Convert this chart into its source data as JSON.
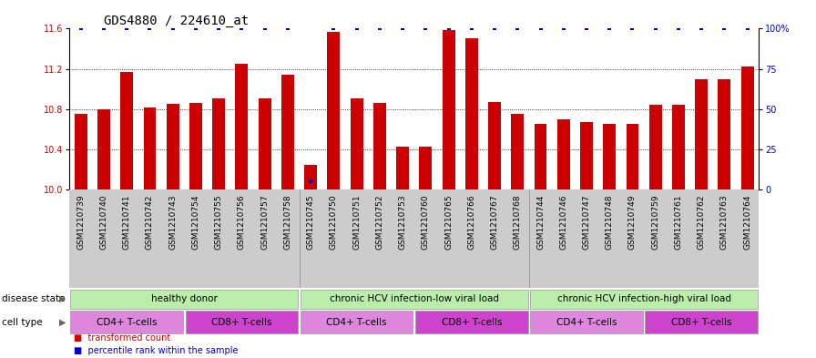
{
  "title": "GDS4880 / 224610_at",
  "samples": [
    "GSM1210739",
    "GSM1210740",
    "GSM1210741",
    "GSM1210742",
    "GSM1210743",
    "GSM1210754",
    "GSM1210755",
    "GSM1210756",
    "GSM1210757",
    "GSM1210758",
    "GSM1210745",
    "GSM1210750",
    "GSM1210751",
    "GSM1210752",
    "GSM1210753",
    "GSM1210760",
    "GSM1210765",
    "GSM1210766",
    "GSM1210767",
    "GSM1210768",
    "GSM1210744",
    "GSM1210746",
    "GSM1210747",
    "GSM1210748",
    "GSM1210749",
    "GSM1210759",
    "GSM1210761",
    "GSM1210762",
    "GSM1210763",
    "GSM1210764"
  ],
  "values": [
    10.75,
    10.8,
    11.17,
    10.82,
    10.85,
    10.86,
    10.91,
    11.25,
    10.91,
    11.14,
    10.25,
    11.57,
    10.91,
    10.86,
    10.43,
    10.43,
    11.59,
    11.5,
    10.87,
    10.75,
    10.65,
    10.7,
    10.67,
    10.65,
    10.65,
    10.84,
    10.84,
    11.1,
    11.1,
    11.22
  ],
  "percentile_ranks": [
    100,
    100,
    100,
    100,
    100,
    100,
    100,
    100,
    100,
    100,
    5,
    100,
    100,
    100,
    100,
    100,
    100,
    100,
    100,
    100,
    100,
    100,
    100,
    100,
    100,
    100,
    100,
    100,
    100,
    100
  ],
  "ylim_left": [
    10.0,
    11.6
  ],
  "ylim_right": [
    0,
    100
  ],
  "yticks_left": [
    10.0,
    10.4,
    10.8,
    11.2,
    11.6
  ],
  "yticks_right": [
    0,
    25,
    50,
    75,
    100
  ],
  "bar_color": "#cc0000",
  "percentile_color": "#0000cc",
  "bar_width": 0.55,
  "disease_state_groups": [
    {
      "label": "healthy donor",
      "start": 0,
      "end": 9
    },
    {
      "label": "chronic HCV infection-low viral load",
      "start": 10,
      "end": 19
    },
    {
      "label": "chronic HCV infection-high viral load",
      "start": 20,
      "end": 29
    }
  ],
  "disease_state_color": "#bbeeaa",
  "cell_type_groups": [
    {
      "label": "CD4+ T-cells",
      "start": 0,
      "end": 4
    },
    {
      "label": "CD8+ T-cells",
      "start": 5,
      "end": 9
    },
    {
      "label": "CD4+ T-cells",
      "start": 10,
      "end": 14
    },
    {
      "label": "CD8+ T-cells",
      "start": 15,
      "end": 19
    },
    {
      "label": "CD4+ T-cells",
      "start": 20,
      "end": 24
    },
    {
      "label": "CD8+ T-cells",
      "start": 25,
      "end": 29
    }
  ],
  "cd4_color": "#dd88dd",
  "cd8_color": "#cc44cc",
  "disease_state_label": "disease state",
  "cell_type_label": "cell type",
  "legend_items": [
    {
      "label": "transformed count",
      "color": "#cc0000"
    },
    {
      "label": "percentile rank within the sample",
      "color": "#0000cc"
    }
  ],
  "background_color": "#ffffff",
  "xtick_bg_color": "#cccccc",
  "grid_color": "#000000",
  "title_fontsize": 10,
  "tick_fontsize": 6.5,
  "label_fontsize": 8
}
